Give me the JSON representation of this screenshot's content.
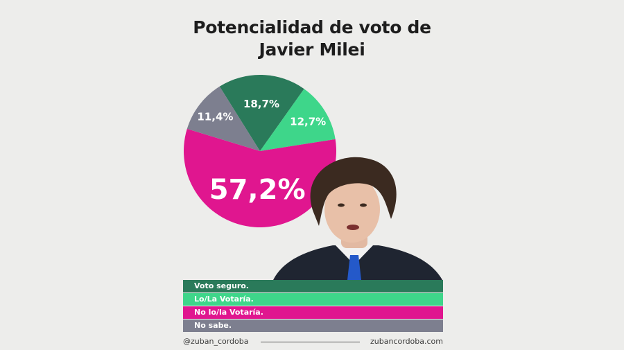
{
  "title_line1": "Potencialidad de voto de",
  "title_line2": "Javier Milei",
  "chart_data": {
    "type": "pie",
    "title": "Potencialidad de voto de Javier Milei",
    "slices": [
      {
        "label": "Voto seguro.",
        "value": 18.7,
        "display": "18,7%",
        "color": "#2a7a5a"
      },
      {
        "label": "Lo/La Votaría.",
        "value": 12.7,
        "display": "12,7%",
        "color": "#3ed68a"
      },
      {
        "label": "No lo/la Votaría.",
        "value": 57.2,
        "display": "57,2%",
        "color": "#e0168f"
      },
      {
        "label": "No sabe.",
        "value": 11.4,
        "display": "11,4%",
        "color": "#7d7f8f"
      }
    ],
    "legend_placement": "bottom"
  },
  "legend": [
    {
      "label": "Voto seguro.",
      "color": "#2a7a5a"
    },
    {
      "label": "Lo/La Votaría.",
      "color": "#3ed68a"
    },
    {
      "label": "No lo/la Votaría.",
      "color": "#e0168f"
    },
    {
      "label": "No sabe.",
      "color": "#7d7f8f"
    }
  ],
  "footer": {
    "handle": "@zuban_cordoba",
    "site": "zubancordoba.com"
  }
}
